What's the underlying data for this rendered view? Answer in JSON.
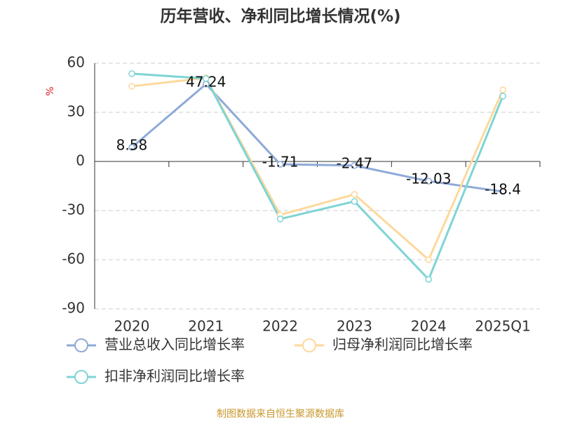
{
  "chart_data": {
    "type": "line",
    "title": "历年营收、净利同比增长情况(%)",
    "y_label": "%",
    "categories": [
      "2020",
      "2021",
      "2022",
      "2023",
      "2024",
      "2025Q1"
    ],
    "series": [
      {
        "name": "营业总收入同比增长率",
        "color": "#8eaad8",
        "values": [
          8.58,
          47.24,
          -1.71,
          -2.47,
          -12.03,
          -18.4
        ],
        "show_labels": true
      },
      {
        "name": "归母净利润同比增长率",
        "color": "#fcd99c",
        "values": [
          45.9,
          51,
          -32.6,
          -20.1,
          -60,
          43.7
        ]
      },
      {
        "name": "扣非净利润同比增长率",
        "color": "#7fd4d4",
        "values": [
          53.6,
          50.6,
          -35.1,
          -24.4,
          -72,
          39.9
        ]
      }
    ],
    "ylim": [
      -90,
      60
    ],
    "yticks": [
      -90,
      -60,
      -30,
      0,
      30,
      60
    ],
    "grid": true,
    "source": "制图数据来自恒生聚源数据库"
  }
}
